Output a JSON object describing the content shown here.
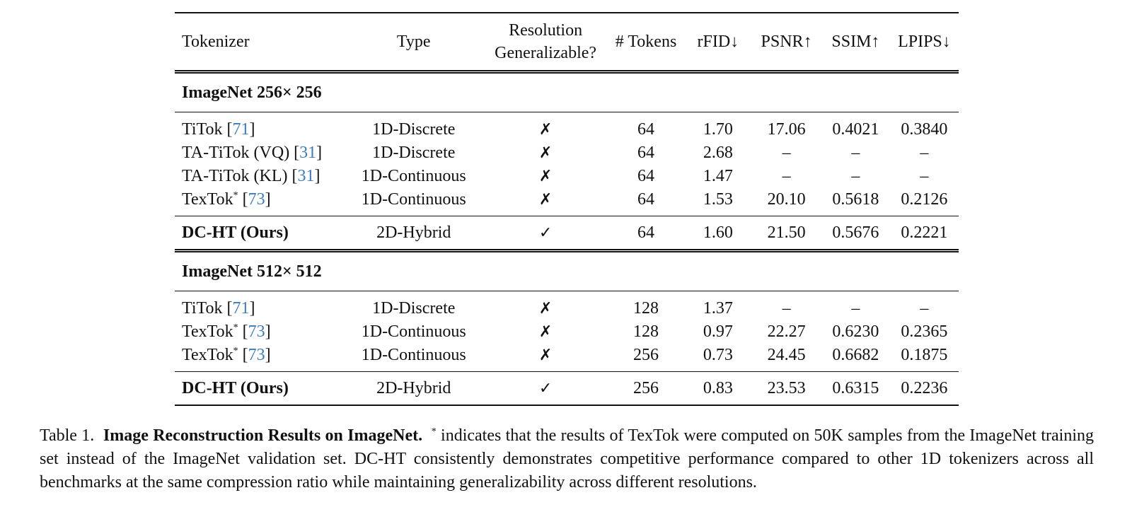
{
  "table": {
    "headers": {
      "tokenizer": "Tokenizer",
      "type": "Type",
      "resolution_line1": "Resolution",
      "resolution_line2": "Generalizable?",
      "tokens": "# Tokens",
      "rfid": "rFID↓",
      "psnr": "PSNR↑",
      "ssim": "SSIM↑",
      "lpips": "LPIPS↓"
    },
    "sections": [
      {
        "title": "ImageNet 256× 256",
        "rows": [
          {
            "name": "TiTok [",
            "sup": "",
            "cite": "71",
            "close": "]",
            "type": "1D-Discrete",
            "res": "✗",
            "tokens": "64",
            "rfid": "1.70",
            "psnr": "17.06",
            "ssim": "0.4021",
            "lpips": "0.3840"
          },
          {
            "name": "TA-TiTok (VQ) [",
            "sup": "",
            "cite": "31",
            "close": "]",
            "type": "1D-Discrete",
            "res": "✗",
            "tokens": "64",
            "rfid": "2.68",
            "psnr": "–",
            "ssim": "–",
            "lpips": "–"
          },
          {
            "name": "TA-TiTok (KL) [",
            "sup": "",
            "cite": "31",
            "close": "]",
            "type": "1D-Continuous",
            "res": "✗",
            "tokens": "64",
            "rfid": "1.47",
            "psnr": "–",
            "ssim": "–",
            "lpips": "–"
          },
          {
            "name": "TexTok",
            "sup": "*",
            "cite": "73",
            "close": "]",
            "type": "1D-Continuous",
            "res": "✗",
            "tokens": "64",
            "rfid": "1.53",
            "psnr": "20.10",
            "ssim": "0.5618",
            "lpips": "0.2126"
          }
        ],
        "ours": {
          "name": "DC-HT (Ours)",
          "type": "2D-Hybrid",
          "res": "✓",
          "tokens": "64",
          "rfid": "1.60",
          "psnr": "21.50",
          "ssim": "0.5676",
          "lpips": "0.2221"
        }
      },
      {
        "title": "ImageNet 512× 512",
        "rows": [
          {
            "name": "TiTok [",
            "sup": "",
            "cite": "71",
            "close": "]",
            "type": "1D-Discrete",
            "res": "✗",
            "tokens": "128",
            "rfid": "1.37",
            "psnr": "–",
            "ssim": "–",
            "lpips": "–"
          },
          {
            "name": "TexTok",
            "sup": "*",
            "cite": "73",
            "close": "]",
            "type": "1D-Continuous",
            "res": "✗",
            "tokens": "128",
            "rfid": "0.97",
            "psnr": "22.27",
            "ssim": "0.6230",
            "lpips": "0.2365"
          },
          {
            "name": "TexTok",
            "sup": "*",
            "cite": "73",
            "close": "]",
            "type": "1D-Continuous",
            "res": "✗",
            "tokens": "256",
            "rfid": "0.73",
            "psnr": "24.45",
            "ssim": "0.6682",
            "lpips": "0.1875"
          }
        ],
        "ours": {
          "name": "DC-HT (Ours)",
          "type": "2D-Hybrid",
          "res": "✓",
          "tokens": "256",
          "rfid": "0.83",
          "psnr": "23.53",
          "ssim": "0.6315",
          "lpips": "0.2236"
        }
      }
    ]
  },
  "caption": {
    "label": "Table 1.",
    "bold": "Image Reconstruction Results on ImageNet.",
    "star": "*",
    "text": "indicates that the results of TexTok were computed on 50K samples from the ImageNet training set instead of the ImageNet validation set.  DC-HT consistently demonstrates competitive performance compared to other 1D tokenizers across all benchmarks at the same compression ratio while maintaining generalizability across different resolutions."
  }
}
